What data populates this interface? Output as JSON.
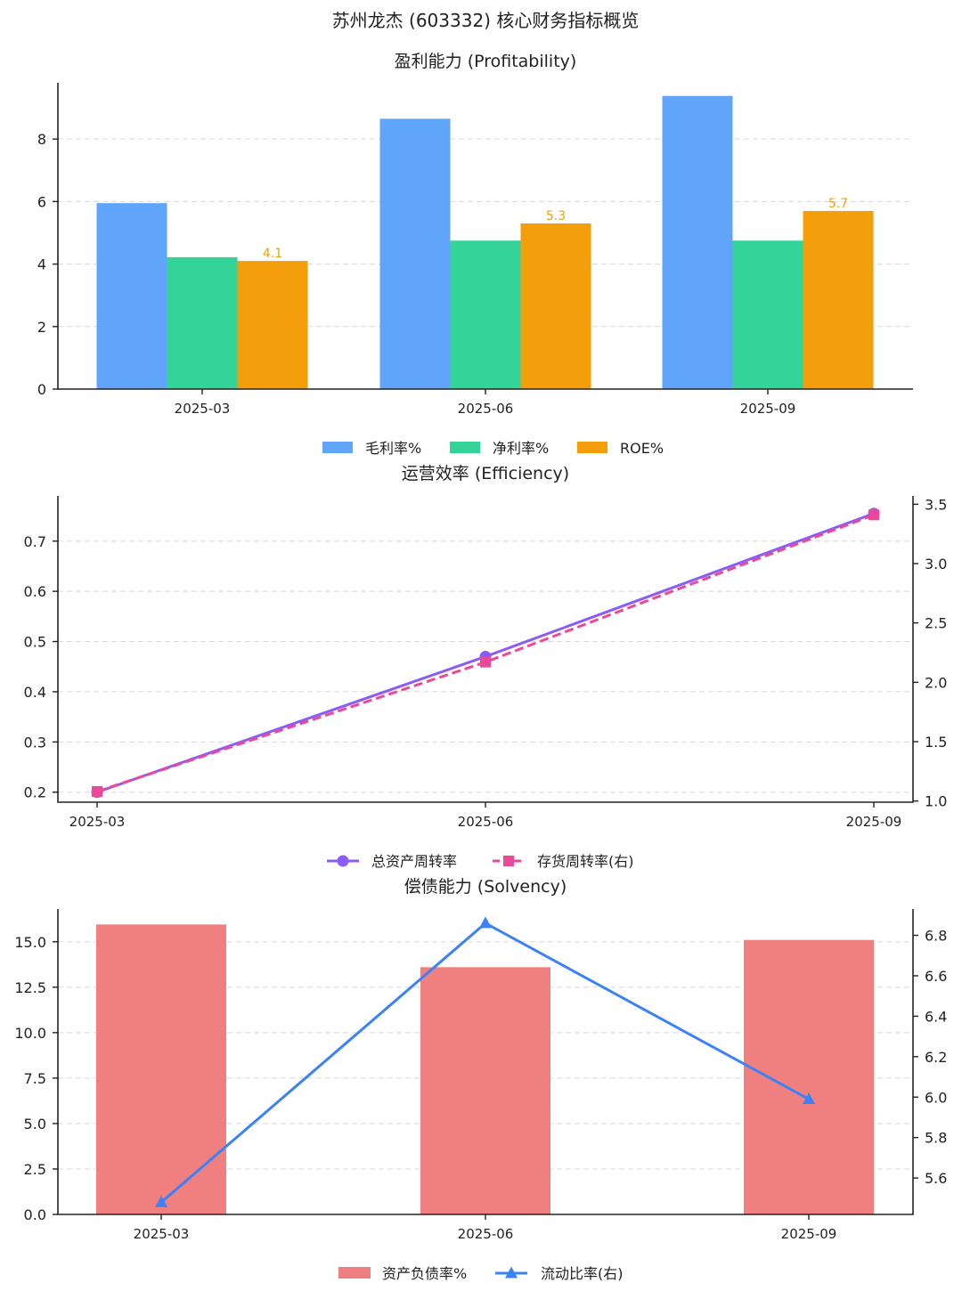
{
  "title": "苏州龙杰 (603332) 核心财务指标概览",
  "chart_data": [
    {
      "type": "bar",
      "title": "盈利能力 (Profitability)",
      "categories": [
        "2025-03",
        "2025-06",
        "2025-09"
      ],
      "series": [
        {
          "name": "毛利率%",
          "values": [
            5.95,
            8.65,
            9.38
          ],
          "color": "#60a5fa"
        },
        {
          "name": "净利率%",
          "values": [
            4.22,
            4.75,
            4.75
          ],
          "color": "#34d399"
        },
        {
          "name": "ROE%",
          "values": [
            4.1,
            5.3,
            5.7
          ],
          "color": "#f59e0b"
        }
      ],
      "data_labels": {
        "series": "ROE%",
        "labels": [
          "4.1",
          "5.3",
          "5.7"
        ],
        "color": "#f59e0b"
      },
      "ylim": [
        0,
        9.8
      ],
      "yticks": [
        0,
        2,
        4,
        6,
        8
      ],
      "ytick_labels": [
        "0",
        "2",
        "4",
        "6",
        "8"
      ],
      "grid": true,
      "legend_position": "bottom-center"
    },
    {
      "type": "line",
      "title": "运营效率 (Efficiency)",
      "categories": [
        "2025-03",
        "2025-06",
        "2025-09"
      ],
      "series": [
        {
          "name": "总资产周转率",
          "axis": "left",
          "values": [
            0.2,
            0.47,
            0.755
          ],
          "color": "#8b5cf6",
          "marker": "circle",
          "style": "solid"
        },
        {
          "name": "存货周转率(右)",
          "axis": "right",
          "values": [
            1.08,
            2.17,
            3.41
          ],
          "color": "#ec4899",
          "marker": "square",
          "style": "dashed"
        }
      ],
      "ylim_left": [
        0.18,
        0.79
      ],
      "ylim_right": [
        0.99,
        3.57
      ],
      "yticks_left": [
        0.2,
        0.3,
        0.4,
        0.5,
        0.6,
        0.7
      ],
      "ytick_labels_left": [
        "0.2",
        "0.3",
        "0.4",
        "0.5",
        "0.6",
        "0.7"
      ],
      "yticks_right": [
        1.0,
        1.5,
        2.0,
        2.5,
        3.0,
        3.5
      ],
      "ytick_labels_right": [
        "1.0",
        "1.5",
        "2.0",
        "2.5",
        "3.0",
        "3.5"
      ],
      "grid": true,
      "legend_position": "bottom-center"
    },
    {
      "type": "bar",
      "title": "偿债能力 (Solvency)",
      "categories": [
        "2025-03",
        "2025-06",
        "2025-09"
      ],
      "series": [
        {
          "name": "资产负债率%",
          "axis": "left",
          "kind": "bar",
          "values": [
            15.95,
            13.6,
            15.1
          ],
          "color": "#f08080"
        },
        {
          "name": "流动比率(右)",
          "axis": "right",
          "kind": "line",
          "values": [
            5.48,
            6.86,
            5.99
          ],
          "color": "#3b82f6",
          "marker": "triangle"
        }
      ],
      "ylim_left": [
        0,
        16.8
      ],
      "ylim_right": [
        5.42,
        6.93
      ],
      "yticks_left": [
        0,
        2.5,
        5,
        7.5,
        10,
        12.5,
        15
      ],
      "ytick_labels_left": [
        "0.0",
        "2.5",
        "5.0",
        "7.5",
        "10.0",
        "12.5",
        "15.0"
      ],
      "yticks_right": [
        5.6,
        5.8,
        6.0,
        6.2,
        6.4,
        6.6,
        6.8
      ],
      "ytick_labels_right": [
        "5.6",
        "5.8",
        "6.0",
        "6.2",
        "6.4",
        "6.6",
        "6.8"
      ],
      "grid": true,
      "legend_position": "bottom-center"
    }
  ]
}
